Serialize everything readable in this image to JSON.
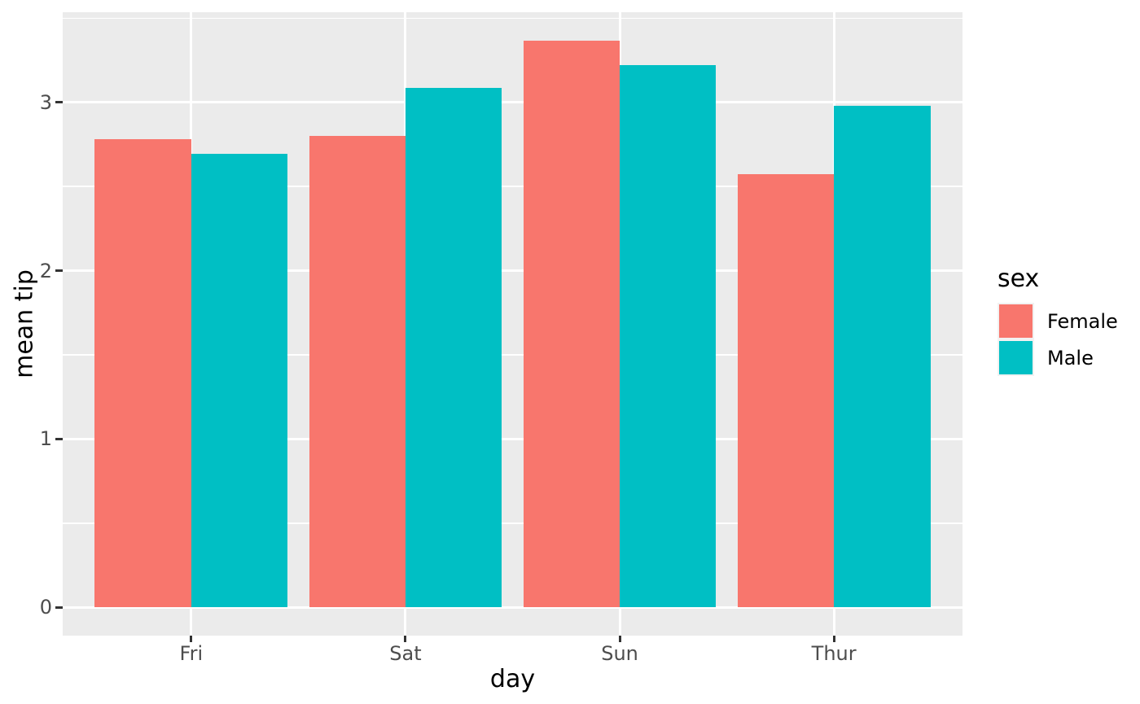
{
  "chart_data": {
    "type": "bar",
    "title": "",
    "xlabel": "day",
    "ylabel": "mean tip",
    "categories": [
      "Fri",
      "Sat",
      "Sun",
      "Thur"
    ],
    "series": [
      {
        "name": "Female",
        "color": "#F8766D",
        "values": [
          2.781,
          2.802,
          3.367,
          2.576
        ]
      },
      {
        "name": "Male",
        "color": "#00BFC4",
        "values": [
          2.693,
          3.084,
          3.22,
          2.98
        ]
      }
    ],
    "legend": {
      "title": "sex",
      "position": "right",
      "entries": [
        "Female",
        "Male"
      ]
    },
    "y_ticks": [
      0,
      1,
      2,
      3
    ],
    "ylim": [
      -0.168,
      3.536
    ],
    "bar_width_units": 0.45,
    "grouping": "dodge",
    "grid": {
      "horizontal_major": true,
      "horizontal_minor": true,
      "vertical_major_at_categories": true,
      "grid_color": "#FFFFFF"
    }
  },
  "colors": {
    "panel_background": "#EBEBEB",
    "figure_background": "#FFFFFF",
    "gridline": "#FFFFFF",
    "tick_label_text": "#4D4D4D",
    "tick_mark": "#333333",
    "axis_title_text": "#000000",
    "legend_key_background": "#F2F2F2",
    "female_bar": "#F8766D",
    "male_bar": "#00BFC4"
  }
}
